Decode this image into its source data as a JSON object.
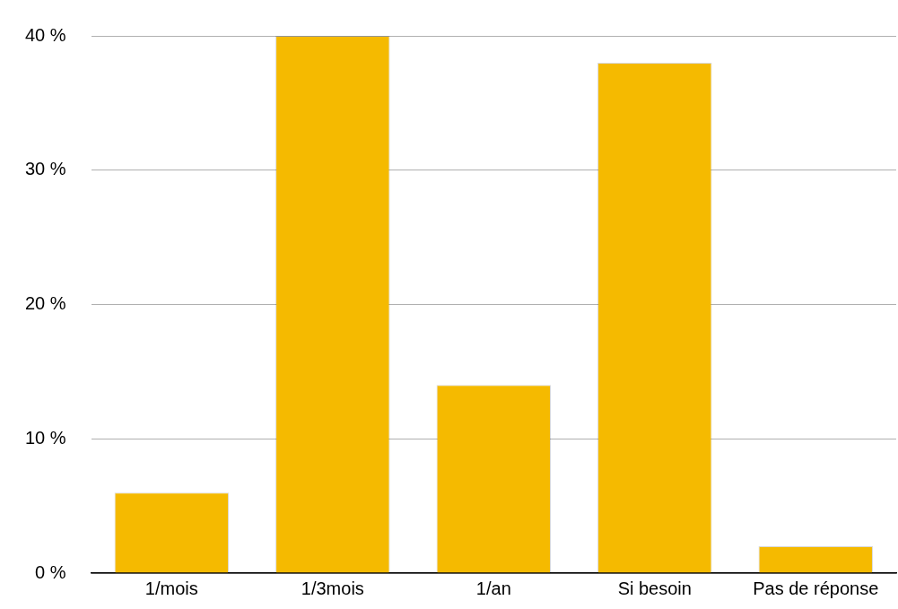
{
  "chart_data": {
    "type": "bar",
    "categories": [
      "1/mois",
      "1/3mois",
      "1/an",
      "Si besoin",
      "Pas de réponse"
    ],
    "values": [
      6,
      40,
      14,
      38,
      2
    ],
    "color": "#f5ba00",
    "ylim": [
      0,
      40
    ],
    "yticks": [
      {
        "value": 0,
        "label": "0 %"
      },
      {
        "value": 10,
        "label": "10 %"
      },
      {
        "value": 20,
        "label": "20 %"
      },
      {
        "value": 30,
        "label": "30 %"
      },
      {
        "value": 40,
        "label": "40 %"
      }
    ],
    "grid": "y",
    "legend": false
  }
}
